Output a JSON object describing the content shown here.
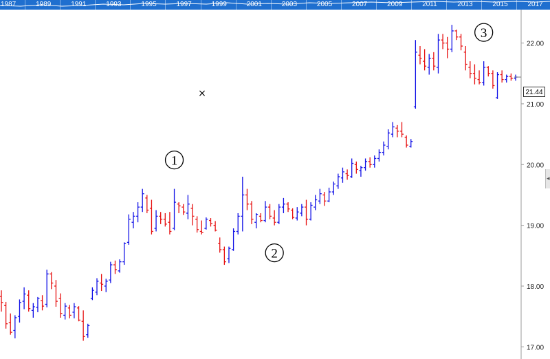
{
  "navigator": {
    "years": [
      "1987",
      "1989",
      "1991",
      "1993",
      "1995",
      "1997",
      "1999",
      "2001",
      "2003",
      "2005",
      "2007",
      "2009",
      "2011",
      "2013",
      "2015",
      "2017"
    ]
  },
  "chart_data": {
    "type": "ohlc",
    "y_axis": {
      "position": "right",
      "ylim": [
        16.8,
        22.55
      ],
      "ticks": [
        17.0,
        18.0,
        19.0,
        20.0,
        21.0,
        22.0
      ],
      "tick_labels": [
        "17.00",
        "18.00",
        "19.00",
        "20.00",
        "21.00",
        "22.00"
      ]
    },
    "colors": {
      "up": "#1010e6",
      "down": "#e61010",
      "grid": "#e3e3e3",
      "axis": "#9a9a9a"
    },
    "last_price": {
      "value": 21.44,
      "label": "21.44"
    },
    "annotations": [
      {
        "label": "1",
        "bar_index": 38
      },
      {
        "label": "2",
        "bar_index": 60
      },
      {
        "label": "3",
        "bar_index": 106
      }
    ],
    "cursor_marker": "×",
    "bars": [
      [
        17.83,
        17.93,
        17.58,
        17.73
      ],
      [
        17.68,
        17.74,
        17.3,
        17.38
      ],
      [
        17.4,
        17.55,
        17.2,
        17.24
      ],
      [
        17.27,
        17.52,
        17.14,
        17.48
      ],
      [
        17.5,
        17.78,
        17.4,
        17.73
      ],
      [
        17.75,
        17.98,
        17.62,
        17.87
      ],
      [
        17.85,
        17.93,
        17.58,
        17.63
      ],
      [
        17.6,
        17.72,
        17.48,
        17.66
      ],
      [
        17.65,
        17.82,
        17.57,
        17.8
      ],
      [
        17.76,
        17.85,
        17.6,
        17.67
      ],
      [
        17.7,
        18.27,
        17.65,
        18.2
      ],
      [
        18.2,
        18.23,
        17.95,
        18.05
      ],
      [
        18.0,
        18.1,
        17.66,
        17.75
      ],
      [
        17.8,
        17.88,
        17.48,
        17.55
      ],
      [
        17.52,
        17.72,
        17.45,
        17.67
      ],
      [
        17.64,
        17.69,
        17.47,
        17.52
      ],
      [
        17.57,
        17.72,
        17.47,
        17.66
      ],
      [
        17.64,
        17.67,
        17.42,
        17.44
      ],
      [
        17.42,
        17.6,
        17.1,
        17.17
      ],
      [
        17.2,
        17.38,
        17.15,
        17.35
      ],
      [
        17.8,
        17.98,
        17.77,
        17.93
      ],
      [
        17.9,
        18.13,
        17.85,
        18.08
      ],
      [
        18.05,
        18.2,
        17.92,
        18.03
      ],
      [
        18.0,
        18.12,
        17.9,
        18.08
      ],
      [
        18.1,
        18.4,
        18.05,
        18.35
      ],
      [
        18.35,
        18.42,
        18.2,
        18.27
      ],
      [
        18.25,
        18.44,
        18.22,
        18.4
      ],
      [
        18.4,
        18.72,
        18.35,
        18.7
      ],
      [
        18.72,
        19.18,
        18.68,
        19.1
      ],
      [
        19.05,
        19.22,
        18.95,
        19.15
      ],
      [
        19.15,
        19.38,
        19.05,
        19.3
      ],
      [
        19.3,
        19.6,
        19.22,
        19.52
      ],
      [
        19.45,
        19.5,
        19.2,
        19.25
      ],
      [
        19.28,
        19.42,
        18.85,
        18.9
      ],
      [
        18.95,
        19.25,
        18.9,
        19.15
      ],
      [
        19.15,
        19.22,
        19.02,
        19.1
      ],
      [
        19.1,
        19.2,
        18.98,
        19.02
      ],
      [
        19.05,
        19.22,
        18.85,
        18.9
      ],
      [
        18.95,
        19.6,
        18.92,
        19.38
      ],
      [
        19.35,
        19.38,
        19.2,
        19.32
      ],
      [
        19.3,
        19.35,
        19.17,
        19.22
      ],
      [
        19.2,
        19.5,
        19.1,
        19.35
      ],
      [
        19.28,
        19.35,
        19.0,
        19.15
      ],
      [
        19.1,
        19.15,
        18.88,
        18.93
      ],
      [
        18.9,
        19.08,
        18.85,
        18.88
      ],
      [
        18.95,
        19.13,
        18.93,
        19.1
      ],
      [
        19.08,
        19.12,
        18.98,
        19.03
      ],
      [
        19.0,
        19.07,
        18.9,
        18.92
      ],
      [
        18.7,
        18.8,
        18.55,
        18.6
      ],
      [
        18.6,
        18.65,
        18.35,
        18.4
      ],
      [
        18.45,
        18.65,
        18.38,
        18.62
      ],
      [
        18.6,
        18.95,
        18.58,
        18.9
      ],
      [
        18.9,
        19.2,
        18.85,
        19.15
      ],
      [
        19.15,
        19.8,
        18.9,
        19.5
      ],
      [
        19.5,
        19.6,
        19.25,
        19.35
      ],
      [
        19.35,
        19.4,
        19.02,
        19.1
      ],
      [
        19.05,
        19.2,
        18.95,
        19.18
      ],
      [
        19.15,
        19.2,
        19.05,
        19.08
      ],
      [
        19.08,
        19.4,
        19.05,
        19.3
      ],
      [
        19.3,
        19.35,
        19.1,
        19.15
      ],
      [
        19.12,
        19.25,
        19.0,
        19.05
      ],
      [
        19.05,
        19.35,
        19.02,
        19.3
      ],
      [
        19.3,
        19.45,
        19.2,
        19.35
      ],
      [
        19.35,
        19.38,
        19.22,
        19.27
      ],
      [
        19.25,
        19.28,
        19.1,
        19.13
      ],
      [
        19.12,
        19.3,
        19.08,
        19.22
      ],
      [
        19.2,
        19.35,
        19.15,
        19.3
      ],
      [
        19.3,
        19.42,
        19.0,
        19.1
      ],
      [
        19.1,
        19.38,
        19.08,
        19.33
      ],
      [
        19.3,
        19.5,
        19.25,
        19.42
      ],
      [
        19.4,
        19.6,
        19.35,
        19.52
      ],
      [
        19.5,
        19.55,
        19.32,
        19.4
      ],
      [
        19.4,
        19.62,
        19.38,
        19.55
      ],
      [
        19.55,
        19.72,
        19.5,
        19.68
      ],
      [
        19.65,
        19.85,
        19.6,
        19.8
      ],
      [
        19.78,
        19.95,
        19.7,
        19.88
      ],
      [
        19.85,
        19.92,
        19.75,
        19.82
      ],
      [
        19.8,
        20.1,
        19.78,
        20.02
      ],
      [
        20.0,
        20.05,
        19.85,
        19.92
      ],
      [
        19.9,
        19.98,
        19.8,
        19.95
      ],
      [
        19.95,
        20.1,
        19.9,
        20.05
      ],
      [
        20.05,
        20.12,
        19.95,
        20.0
      ],
      [
        20.0,
        20.15,
        19.95,
        20.1
      ],
      [
        20.1,
        20.25,
        20.05,
        20.2
      ],
      [
        20.2,
        20.38,
        20.15,
        20.32
      ],
      [
        20.3,
        20.58,
        20.25,
        20.52
      ],
      [
        20.5,
        20.7,
        20.45,
        20.62
      ],
      [
        20.6,
        20.65,
        20.45,
        20.55
      ],
      [
        20.55,
        20.7,
        20.45,
        20.5
      ],
      [
        20.45,
        20.48,
        20.28,
        20.32
      ],
      [
        20.3,
        20.42,
        20.28,
        20.38
      ],
      [
        20.95,
        22.05,
        20.92,
        21.85
      ],
      [
        21.8,
        21.95,
        21.65,
        21.75
      ],
      [
        21.7,
        21.9,
        21.55,
        21.62
      ],
      [
        21.6,
        21.82,
        21.48,
        21.75
      ],
      [
        21.75,
        21.85,
        21.55,
        21.62
      ],
      [
        21.6,
        22.15,
        21.5,
        22.05
      ],
      [
        22.05,
        22.15,
        21.9,
        22.0
      ],
      [
        22.0,
        22.1,
        21.75,
        21.9
      ],
      [
        21.9,
        22.3,
        21.85,
        22.2
      ],
      [
        22.2,
        22.22,
        22.05,
        22.1
      ],
      [
        22.1,
        22.15,
        21.88,
        21.95
      ],
      [
        21.85,
        21.95,
        21.55,
        21.65
      ],
      [
        21.6,
        21.7,
        21.42,
        21.5
      ],
      [
        21.5,
        21.65,
        21.32,
        21.42
      ],
      [
        21.4,
        21.55,
        21.32,
        21.35
      ],
      [
        21.35,
        21.7,
        21.3,
        21.6
      ],
      [
        21.6,
        21.62,
        21.45,
        21.5
      ],
      [
        21.5,
        21.55,
        21.25,
        21.3
      ],
      [
        21.1,
        21.52,
        21.08,
        21.48
      ],
      [
        21.48,
        21.55,
        21.35,
        21.4
      ],
      [
        21.4,
        21.48,
        21.35,
        21.45
      ],
      [
        21.45,
        21.5,
        21.38,
        21.42
      ],
      [
        21.42,
        21.48,
        21.38,
        21.44
      ]
    ]
  }
}
